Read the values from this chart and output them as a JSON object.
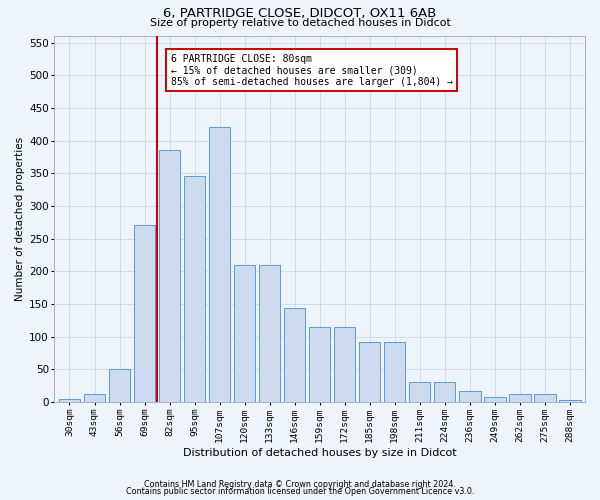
{
  "title1": "6, PARTRIDGE CLOSE, DIDCOT, OX11 6AB",
  "title2": "Size of property relative to detached houses in Didcot",
  "xlabel": "Distribution of detached houses by size in Didcot",
  "ylabel": "Number of detached properties",
  "categories": [
    "30sqm",
    "43sqm",
    "56sqm",
    "69sqm",
    "82sqm",
    "95sqm",
    "107sqm",
    "120sqm",
    "133sqm",
    "146sqm",
    "159sqm",
    "172sqm",
    "185sqm",
    "198sqm",
    "211sqm",
    "224sqm",
    "236sqm",
    "249sqm",
    "262sqm",
    "275sqm",
    "288sqm"
  ],
  "values": [
    5,
    12,
    50,
    271,
    385,
    345,
    420,
    210,
    210,
    143,
    115,
    115,
    92,
    92,
    30,
    30,
    17,
    8,
    12,
    12,
    3
  ],
  "bar_color": "#ccdcee",
  "bar_edge_color": "#5b9bd5",
  "vline_color": "#cc0000",
  "vline_xidx": 3.5,
  "annotation_line1": "6 PARTRIDGE CLOSE: 80sqm",
  "annotation_line2": "← 15% of detached houses are smaller (309)",
  "annotation_line3": "85% of semi-detached houses are larger (1,804) →",
  "annotation_box_edgecolor": "#cc0000",
  "ylim_max": 560,
  "yticks": [
    0,
    50,
    100,
    150,
    200,
    250,
    300,
    350,
    400,
    450,
    500,
    550
  ],
  "footer1": "Contains HM Land Registry data © Crown copyright and database right 2024.",
  "footer2": "Contains public sector information licensed under the Open Government Licence v3.0.",
  "grid_color": "#c8d8ea",
  "bg_color": "#eef4fb",
  "plot_bg": "#eef4fb"
}
